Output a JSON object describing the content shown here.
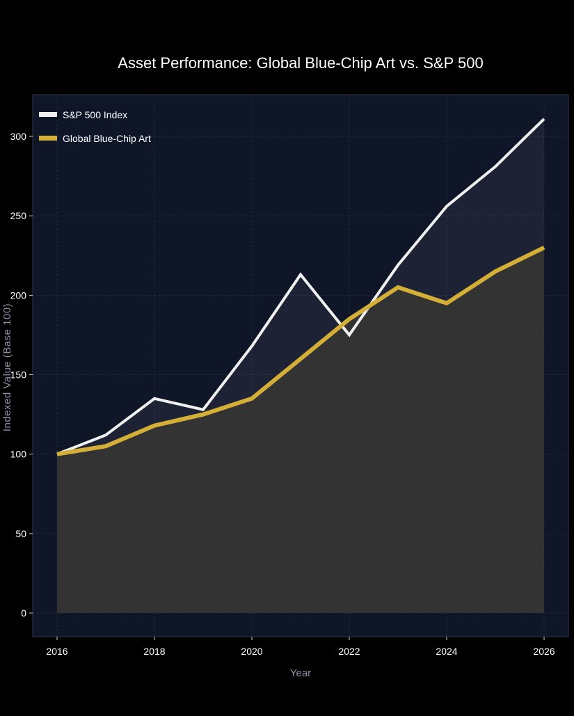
{
  "chart_data": {
    "type": "line",
    "title": "Asset Performance: Global Blue-Chip Art vs. S&P 500",
    "xlabel": "Year",
    "ylabel": "Indexed Value (Base 100)",
    "x": [
      2016,
      2017,
      2018,
      2019,
      2020,
      2021,
      2022,
      2023,
      2024,
      2025,
      2026
    ],
    "xlim": [
      2016,
      2026
    ],
    "ylim": [
      0,
      300
    ],
    "xticks": [
      "2016",
      "2018",
      "2020",
      "2022",
      "2024",
      "2026"
    ],
    "yticks": [
      "0",
      "50",
      "100",
      "150",
      "200",
      "250",
      "300"
    ],
    "grid": true,
    "legend_position": "top-left",
    "series": [
      {
        "name": "S&P 500 Index",
        "color": "#f0f0f0",
        "fill": true,
        "values": [
          100,
          112,
          135,
          128,
          168,
          213,
          175,
          219,
          256,
          281,
          311
        ]
      },
      {
        "name": "Global Blue-Chip Art",
        "color": "#d4af37",
        "fill": true,
        "values": [
          100,
          105,
          118,
          125,
          135,
          160,
          185,
          205,
          195,
          215,
          230
        ]
      }
    ],
    "colors": {
      "background": "#000000",
      "plot_bg": "#0f1628",
      "axis_label": "#8a93a8",
      "art_fill": "#333333"
    }
  }
}
